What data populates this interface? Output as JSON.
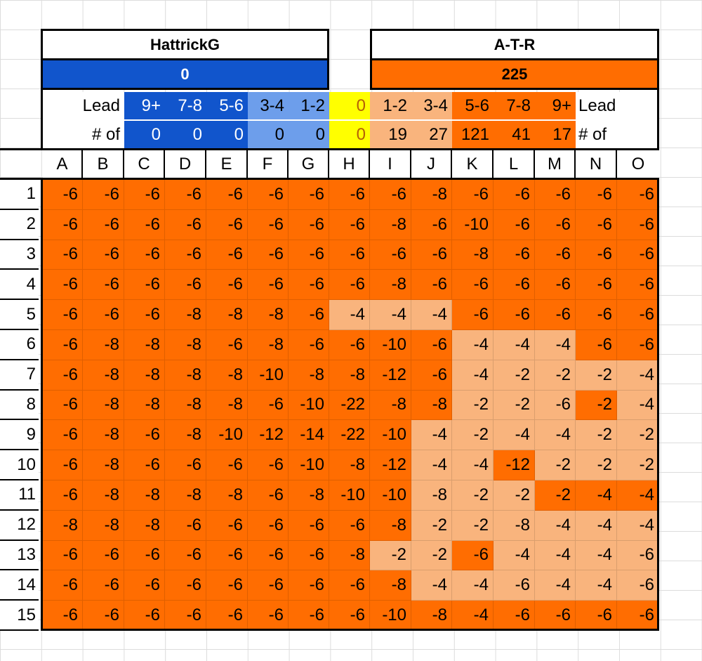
{
  "teams": {
    "home": {
      "name": "HattrickG",
      "score": "0",
      "score_bg": "#1155cc"
    },
    "away": {
      "name": "A-T-R",
      "score": "225",
      "score_bg": "#ff6d01"
    }
  },
  "lead_row": [
    "Lead",
    "9+",
    "7-8",
    "5-6",
    "3-4",
    "1-2",
    "0",
    "1-2",
    "3-4",
    "5-6",
    "7-8",
    "9+",
    "Lead"
  ],
  "count_row": [
    "# of",
    "0",
    "0",
    "0",
    "0",
    "0",
    "0",
    "19",
    "27",
    "121",
    "41",
    "17",
    "# of"
  ],
  "header_colors": [
    "#ffffff",
    "#1155cc",
    "#1155cc",
    "#1155cc",
    "#6d9eeb",
    "#6d9eeb",
    "#ffff00",
    "#f9b47d",
    "#f9b47d",
    "#ff6d01",
    "#ff6d01",
    "#ff6d01",
    "#ffffff"
  ],
  "header_text_colors": [
    "#000000",
    "#ffffff",
    "#ffffff",
    "#ffffff",
    "#000000",
    "#000000",
    "#b45f06",
    "#000000",
    "#000000",
    "#000000",
    "#000000",
    "#000000",
    "#000000"
  ],
  "columns": [
    "A",
    "B",
    "C",
    "D",
    "E",
    "F",
    "G",
    "H",
    "I",
    "J",
    "K",
    "L",
    "M",
    "N",
    "O"
  ],
  "row_numbers": [
    "1",
    "2",
    "3",
    "4",
    "5",
    "6",
    "7",
    "8",
    "9",
    "10",
    "11",
    "12",
    "13",
    "14",
    "15"
  ],
  "colors": {
    "dark": "#ff6d01",
    "light": "#f9b47d"
  },
  "grid": [
    [
      "-6",
      "-6",
      "-6",
      "-6",
      "-6",
      "-6",
      "-6",
      "-6",
      "-6",
      "-8",
      "-6",
      "-6",
      "-6",
      "-6",
      "-6"
    ],
    [
      "-6",
      "-6",
      "-6",
      "-6",
      "-6",
      "-6",
      "-6",
      "-6",
      "-8",
      "-6",
      "-10",
      "-6",
      "-6",
      "-6",
      "-6"
    ],
    [
      "-6",
      "-6",
      "-6",
      "-6",
      "-6",
      "-6",
      "-6",
      "-6",
      "-6",
      "-6",
      "-8",
      "-6",
      "-6",
      "-6",
      "-6"
    ],
    [
      "-6",
      "-6",
      "-6",
      "-6",
      "-6",
      "-6",
      "-6",
      "-6",
      "-8",
      "-6",
      "-6",
      "-6",
      "-6",
      "-6",
      "-6"
    ],
    [
      "-6",
      "-6",
      "-6",
      "-8",
      "-8",
      "-8",
      "-6",
      "-4",
      "-4",
      "-4",
      "-6",
      "-6",
      "-6",
      "-6",
      "-6"
    ],
    [
      "-6",
      "-8",
      "-8",
      "-8",
      "-6",
      "-8",
      "-6",
      "-6",
      "-10",
      "-6",
      "-4",
      "-4",
      "-4",
      "-6",
      "-6"
    ],
    [
      "-6",
      "-8",
      "-8",
      "-8",
      "-8",
      "-10",
      "-8",
      "-8",
      "-12",
      "-6",
      "-4",
      "-2",
      "-2",
      "-2",
      "-4"
    ],
    [
      "-6",
      "-8",
      "-8",
      "-8",
      "-8",
      "-6",
      "-10",
      "-22",
      "-8",
      "-8",
      "-2",
      "-2",
      "-6",
      "-2",
      "-4"
    ],
    [
      "-6",
      "-8",
      "-6",
      "-8",
      "-10",
      "-12",
      "-14",
      "-22",
      "-10",
      "-4",
      "-2",
      "-4",
      "-4",
      "-2",
      "-2"
    ],
    [
      "-6",
      "-8",
      "-6",
      "-6",
      "-6",
      "-6",
      "-10",
      "-8",
      "-12",
      "-4",
      "-4",
      "-12",
      "-2",
      "-2",
      "-2"
    ],
    [
      "-6",
      "-8",
      "-8",
      "-8",
      "-8",
      "-6",
      "-8",
      "-10",
      "-10",
      "-8",
      "-2",
      "-2",
      "-2",
      "-4",
      "-4"
    ],
    [
      "-8",
      "-8",
      "-8",
      "-6",
      "-6",
      "-6",
      "-6",
      "-6",
      "-8",
      "-2",
      "-2",
      "-8",
      "-4",
      "-4",
      "-4"
    ],
    [
      "-6",
      "-6",
      "-6",
      "-6",
      "-6",
      "-6",
      "-6",
      "-8",
      "-2",
      "-2",
      "-6",
      "-4",
      "-4",
      "-4",
      "-6"
    ],
    [
      "-6",
      "-6",
      "-6",
      "-6",
      "-6",
      "-6",
      "-6",
      "-6",
      "-8",
      "-4",
      "-4",
      "-6",
      "-4",
      "-4",
      "-6"
    ],
    [
      "-6",
      "-6",
      "-6",
      "-6",
      "-6",
      "-6",
      "-6",
      "-6",
      "-10",
      "-8",
      "-4",
      "-6",
      "-6",
      "-6",
      "-6"
    ]
  ],
  "grid_shade": [
    "ddddddddddddddd",
    "ddddddddddddddd",
    "ddddddddddddddd",
    "ddddddddddddddd",
    "dddddddlllddddd",
    "ddddddddddllldd",
    "ddddddddddlllll",
    "ddddddddddllldl",
    "dddddddddllllll",
    "dddddddddlldlll",
    "dddddddddlllddd",
    "dddddddddllllll",
    "ddddddddlldllll",
    "dddddddddlllllld",
    "ddddddddddddddd"
  ]
}
